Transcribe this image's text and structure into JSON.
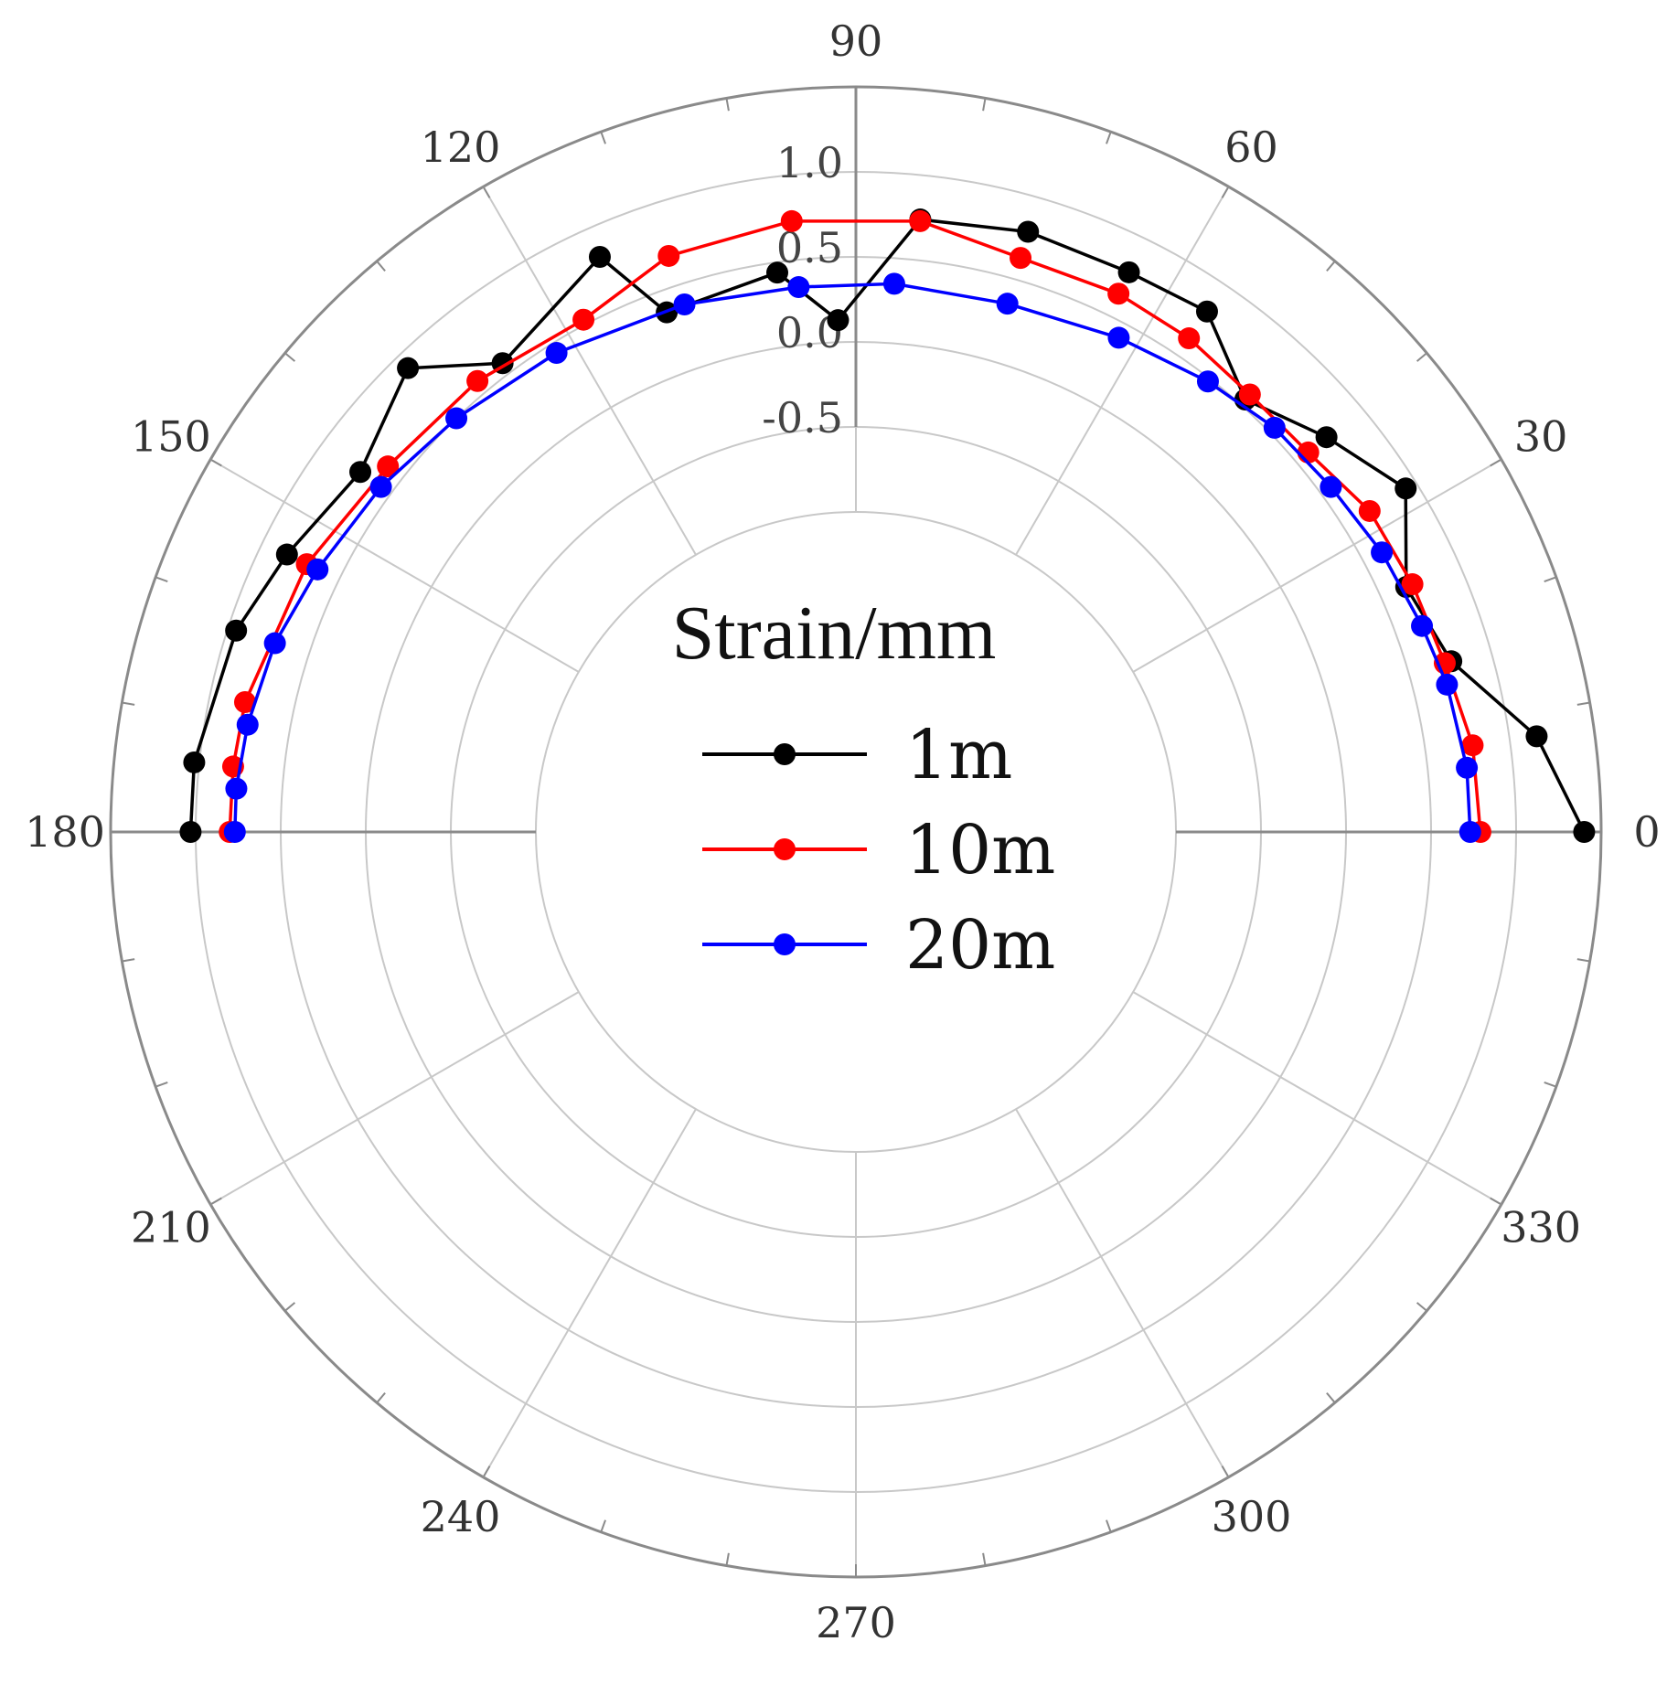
{
  "chart_data": {
    "type": "line",
    "coordinate_system": "polar",
    "angle_unit": "degrees",
    "angle_ticks": [
      "0",
      "30",
      "60",
      "90",
      "120",
      "150",
      "180",
      "210",
      "240",
      "270",
      "300",
      "330"
    ],
    "radial_ticks": [
      "-0.5",
      "0.0",
      "0.5",
      "1.0"
    ],
    "rlim": [
      -1.0,
      1.5
    ],
    "grid": true,
    "legend_position": "center",
    "legend_title": "Strain/mm",
    "series": [
      {
        "name": "1m",
        "color": "#000000",
        "points": [
          {
            "theta": 0,
            "r": 1.4
          },
          {
            "theta": 8,
            "r": 1.16
          },
          {
            "theta": 16,
            "r": 0.76
          },
          {
            "theta": 24,
            "r": 0.66
          },
          {
            "theta": 32,
            "r": 0.93
          },
          {
            "theta": 40,
            "r": 0.73
          },
          {
            "theta": 48,
            "r": 0.54
          },
          {
            "theta": 56,
            "r": 0.81
          },
          {
            "theta": 64,
            "r": 0.78
          },
          {
            "theta": 74,
            "r": 0.79
          },
          {
            "theta": 84,
            "r": 0.74
          },
          {
            "theta": 92,
            "r": 0.13
          },
          {
            "theta": 98,
            "r": 0.44
          },
          {
            "theta": 110,
            "r": 0.37
          },
          {
            "theta": 114,
            "r": 0.82
          },
          {
            "theta": 127,
            "r": 0.57
          },
          {
            "theta": 134,
            "r": 0.91
          },
          {
            "theta": 144,
            "r": 0.72
          },
          {
            "theta": 154,
            "r": 0.84
          },
          {
            "theta": 162,
            "r": 0.95
          },
          {
            "theta": 174,
            "r": 1.03
          },
          {
            "theta": 180,
            "r": 1.03
          }
        ]
      },
      {
        "name": "10m",
        "color": "#ff0000",
        "points": [
          {
            "theta": 0,
            "r": 0.79
          },
          {
            "theta": 8,
            "r": 0.78
          },
          {
            "theta": 16,
            "r": 0.72
          },
          {
            "theta": 24,
            "r": 0.7
          },
          {
            "theta": 32,
            "r": 0.68
          },
          {
            "theta": 40,
            "r": 0.59
          },
          {
            "theta": 48,
            "r": 0.58
          },
          {
            "theta": 56,
            "r": 0.62
          },
          {
            "theta": 64,
            "r": 0.64
          },
          {
            "theta": 74,
            "r": 0.63
          },
          {
            "theta": 84,
            "r": 0.73
          },
          {
            "theta": 96,
            "r": 0.73
          },
          {
            "theta": 108,
            "r": 0.68
          },
          {
            "theta": 118,
            "r": 0.53
          },
          {
            "theta": 130,
            "r": 0.58
          },
          {
            "theta": 142,
            "r": 0.61
          },
          {
            "theta": 154,
            "r": 0.71
          },
          {
            "theta": 168,
            "r": 0.79
          },
          {
            "theta": 174,
            "r": 0.8
          },
          {
            "theta": 180,
            "r": 0.8
          }
        ]
      },
      {
        "name": "20m",
        "color": "#0000ff",
        "points": [
          {
            "theta": 0,
            "r": 0.73
          },
          {
            "theta": 6,
            "r": 0.73
          },
          {
            "theta": 14,
            "r": 0.7
          },
          {
            "theta": 20,
            "r": 0.66
          },
          {
            "theta": 28,
            "r": 0.62
          },
          {
            "theta": 36,
            "r": 0.57
          },
          {
            "theta": 44,
            "r": 0.54
          },
          {
            "theta": 52,
            "r": 0.48
          },
          {
            "theta": 62,
            "r": 0.41
          },
          {
            "theta": 74,
            "r": 0.35
          },
          {
            "theta": 86,
            "r": 0.35
          },
          {
            "theta": 96,
            "r": 0.34
          },
          {
            "theta": 108,
            "r": 0.38
          },
          {
            "theta": 122,
            "r": 0.44
          },
          {
            "theta": 134,
            "r": 0.5
          },
          {
            "theta": 144,
            "r": 0.57
          },
          {
            "theta": 154,
            "r": 0.64
          },
          {
            "theta": 162,
            "r": 0.71
          },
          {
            "theta": 170,
            "r": 0.75
          },
          {
            "theta": 176,
            "r": 0.77
          },
          {
            "theta": 180,
            "r": 0.77
          }
        ]
      }
    ]
  }
}
